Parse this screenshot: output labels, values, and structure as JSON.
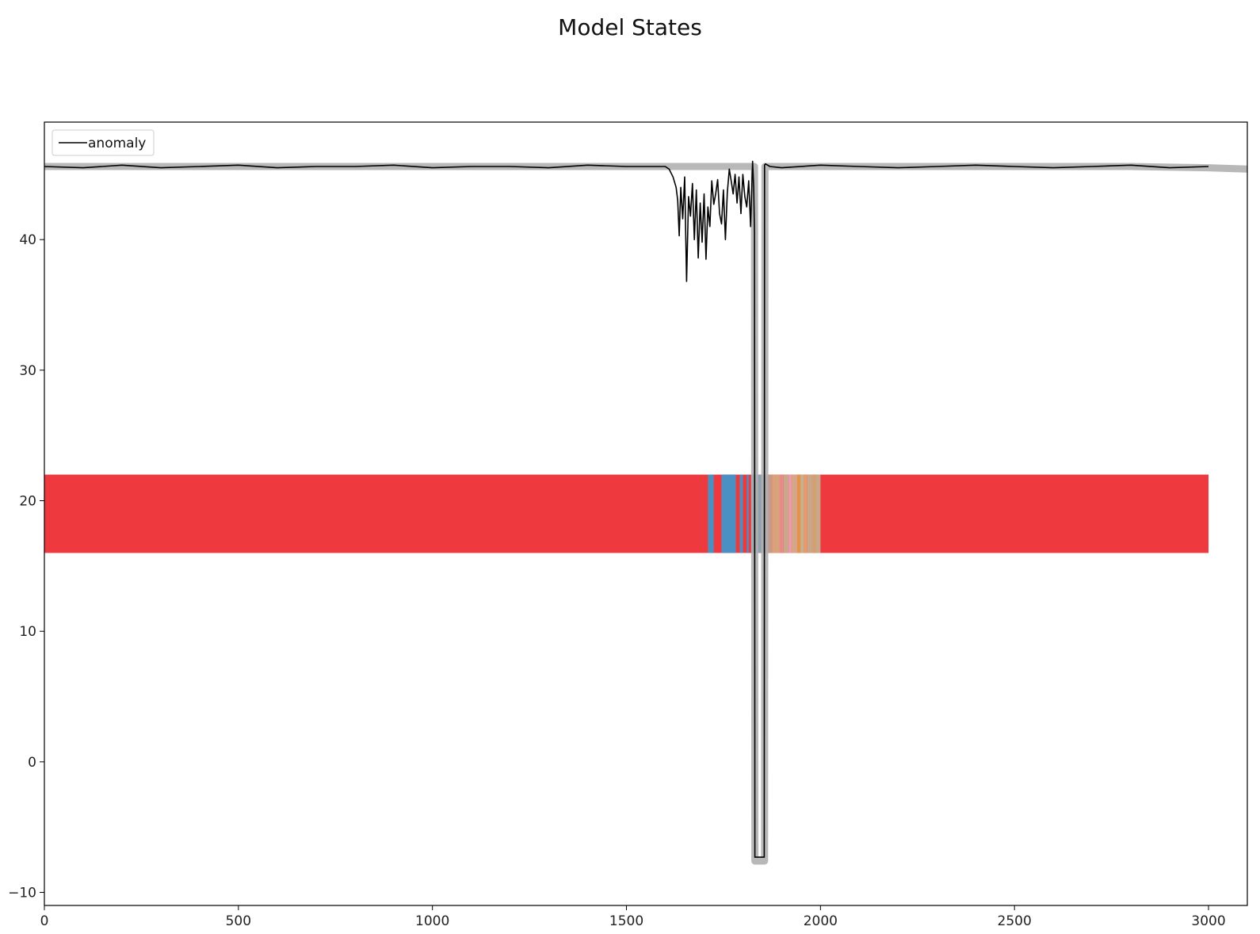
{
  "chart_data": {
    "type": "line",
    "title": "Model States",
    "xlabel": "",
    "ylabel": "",
    "xlim": [
      0,
      3100
    ],
    "ylim": [
      -11,
      49
    ],
    "x_ticks": [
      0,
      500,
      1000,
      1500,
      2000,
      2500,
      3000
    ],
    "y_ticks": [
      -10,
      0,
      10,
      20,
      30,
      40
    ],
    "grid": false,
    "legend": {
      "position": "top-left",
      "entries": [
        "anomaly"
      ]
    },
    "series": [
      {
        "name": "anomaly",
        "color": "#000000",
        "x": [
          0,
          100,
          200,
          300,
          400,
          500,
          600,
          700,
          800,
          900,
          1000,
          1100,
          1200,
          1300,
          1400,
          1500,
          1600,
          1610,
          1620,
          1628,
          1632,
          1636,
          1640,
          1645,
          1650,
          1655,
          1660,
          1665,
          1670,
          1675,
          1680,
          1685,
          1690,
          1695,
          1700,
          1705,
          1710,
          1715,
          1720,
          1725,
          1730,
          1735,
          1740,
          1745,
          1750,
          1755,
          1760,
          1765,
          1770,
          1775,
          1780,
          1785,
          1790,
          1795,
          1800,
          1805,
          1810,
          1815,
          1820,
          1825,
          1828,
          1830,
          1831,
          1835,
          1840,
          1845,
          1850,
          1855,
          1856,
          1858,
          1870,
          1900,
          2000,
          2100,
          2200,
          2300,
          2400,
          2500,
          2600,
          2700,
          2800,
          2900,
          3000
        ],
        "y": [
          45.6,
          45.5,
          45.7,
          45.5,
          45.6,
          45.7,
          45.5,
          45.6,
          45.6,
          45.7,
          45.5,
          45.6,
          45.6,
          45.5,
          45.7,
          45.6,
          45.6,
          45.4,
          44.8,
          44.0,
          43.0,
          40.3,
          44.0,
          41.6,
          44.8,
          36.8,
          43.3,
          41.8,
          44.3,
          40.0,
          43.8,
          38.6,
          42.8,
          39.8,
          43.5,
          38.5,
          42.5,
          41.0,
          44.5,
          42.7,
          43.5,
          44.6,
          42.0,
          41.2,
          43.8,
          40.0,
          43.6,
          45.4,
          44.5,
          43.5,
          45.0,
          42.8,
          44.8,
          42.0,
          45.0,
          43.3,
          42.5,
          44.5,
          41.0,
          46.0,
          44.0,
          40.5,
          -7.3,
          -7.3,
          -7.3,
          -7.3,
          -7.3,
          -7.3,
          45.7,
          45.8,
          45.6,
          45.5,
          45.7,
          45.6,
          45.5,
          45.6,
          45.7,
          45.6,
          45.5,
          45.6,
          45.7,
          45.5,
          45.6
        ]
      },
      {
        "name": "",
        "color": "#b0b0b0",
        "x": [
          0,
          200,
          400,
          600,
          800,
          1000,
          1200,
          1400,
          1600,
          1615,
          1830,
          1831,
          1856,
          1857,
          2000,
          2200,
          2400,
          2600,
          2800,
          3000,
          3100
        ],
        "y": [
          45.6,
          45.6,
          45.6,
          45.6,
          45.6,
          45.6,
          45.6,
          45.6,
          45.6,
          45.6,
          45.6,
          -7.6,
          -7.6,
          45.6,
          45.6,
          45.6,
          45.6,
          45.6,
          45.6,
          45.5,
          45.4
        ]
      }
    ],
    "state_band": {
      "y_range": [
        16,
        22
      ],
      "x_range": [
        0,
        3000
      ],
      "default_color": "#ee3a3f",
      "segments": [
        {
          "start": 1710,
          "end": 1725,
          "color": "#4a90c2"
        },
        {
          "start": 1745,
          "end": 1782,
          "color": "#4a90c2"
        },
        {
          "start": 1792,
          "end": 1800,
          "color": "#4a90c2"
        },
        {
          "start": 1810,
          "end": 1815,
          "color": "#4a90c2"
        },
        {
          "start": 1822,
          "end": 1832,
          "color": "#4a90c2"
        },
        {
          "start": 1832,
          "end": 1856,
          "color": "#8fa0b0"
        },
        {
          "start": 1856,
          "end": 1875,
          "color": "#c79a8a"
        },
        {
          "start": 1875,
          "end": 1895,
          "color": "#d9a27a"
        },
        {
          "start": 1895,
          "end": 1905,
          "color": "#e98a8a"
        },
        {
          "start": 1905,
          "end": 1918,
          "color": "#c9a88a"
        },
        {
          "start": 1918,
          "end": 1925,
          "color": "#f29bb0"
        },
        {
          "start": 1925,
          "end": 1940,
          "color": "#d6a68a"
        },
        {
          "start": 1940,
          "end": 1948,
          "color": "#e6934a"
        },
        {
          "start": 1948,
          "end": 1958,
          "color": "#c9b08a"
        },
        {
          "start": 1958,
          "end": 1966,
          "color": "#e89a6a"
        },
        {
          "start": 1966,
          "end": 1980,
          "color": "#c8a88a"
        },
        {
          "start": 1980,
          "end": 1988,
          "color": "#d4a070"
        },
        {
          "start": 1988,
          "end": 2000,
          "color": "#c9a88a"
        }
      ]
    }
  }
}
